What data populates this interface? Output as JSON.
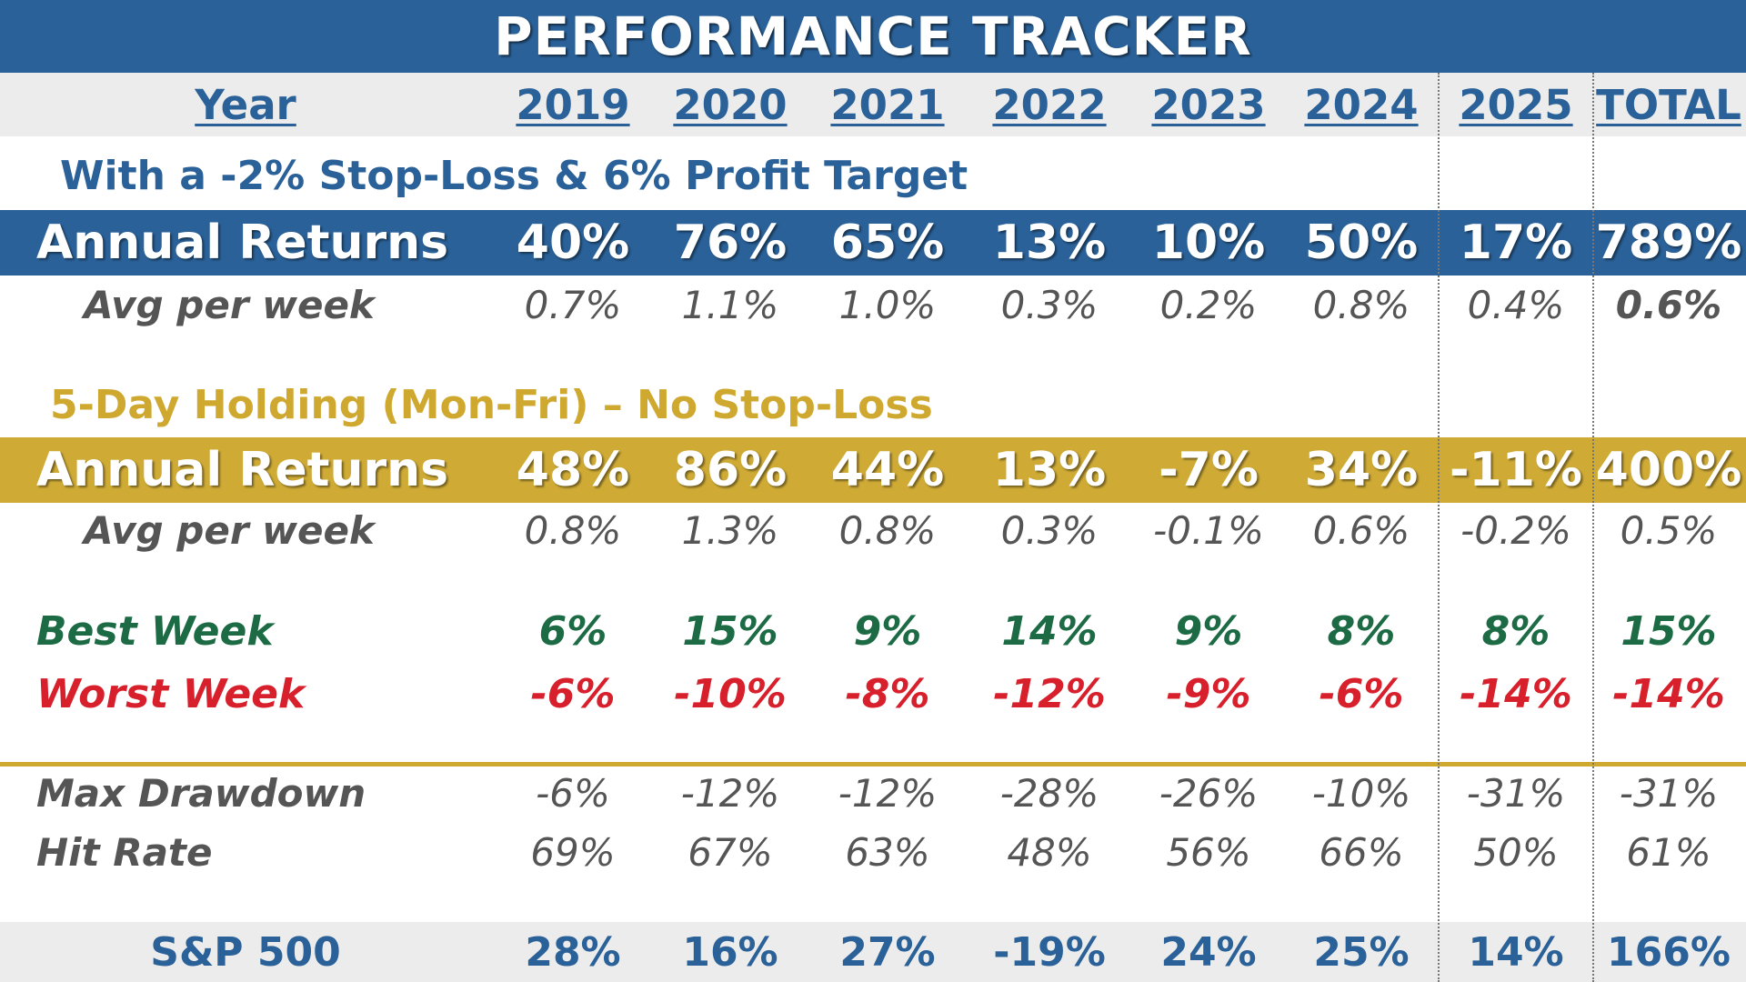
{
  "title": "PERFORMANCE TRACKER",
  "year_label": "Year",
  "years": [
    "2019",
    "2020",
    "2021",
    "2022",
    "2023",
    "2024",
    "2025",
    "TOTAL"
  ],
  "strategy1": {
    "heading": "With a -2% Stop-Loss & 6% Profit Target",
    "annual_label": "Annual Returns",
    "annual": [
      "40%",
      "76%",
      "65%",
      "13%",
      "10%",
      "50%",
      "17%",
      "789%"
    ],
    "avg_label": "Avg per week",
    "avg": [
      "0.7%",
      "1.1%",
      "1.0%",
      "0.3%",
      "0.2%",
      "0.8%",
      "0.4%",
      "0.6%"
    ]
  },
  "strategy2": {
    "heading": "5-Day Holding (Mon-Fri) – No Stop-Loss",
    "annual_label": "Annual Returns",
    "annual": [
      "48%",
      "86%",
      "44%",
      "13%",
      "-7%",
      "34%",
      "-11%",
      "400%"
    ],
    "avg_label": "Avg per week",
    "avg": [
      "0.8%",
      "1.3%",
      "0.8%",
      "0.3%",
      "-0.1%",
      "0.6%",
      "-0.2%",
      "0.5%"
    ]
  },
  "best_week": {
    "label": "Best Week",
    "values": [
      "6%",
      "15%",
      "9%",
      "14%",
      "9%",
      "8%",
      "8%",
      "15%"
    ]
  },
  "worst_week": {
    "label": "Worst Week",
    "values": [
      "-6%",
      "-10%",
      "-8%",
      "-12%",
      "-9%",
      "-6%",
      "-14%",
      "-14%"
    ]
  },
  "max_drawdown": {
    "label": "Max Drawdown",
    "values": [
      "-6%",
      "-12%",
      "-12%",
      "-28%",
      "-26%",
      "-10%",
      "-31%",
      "-31%"
    ]
  },
  "hit_rate": {
    "label": "Hit Rate",
    "values": [
      "69%",
      "67%",
      "63%",
      "48%",
      "56%",
      "66%",
      "50%",
      "61%"
    ]
  },
  "sp500": {
    "label": "S&P 500",
    "values": [
      "28%",
      "16%",
      "27%",
      "-19%",
      "24%",
      "25%",
      "14%",
      "166%"
    ]
  },
  "colors": {
    "blue": "#2a6198",
    "gold": "#cfab36",
    "green": "#1c6b45",
    "red": "#d8202c",
    "gray": "#555555"
  }
}
